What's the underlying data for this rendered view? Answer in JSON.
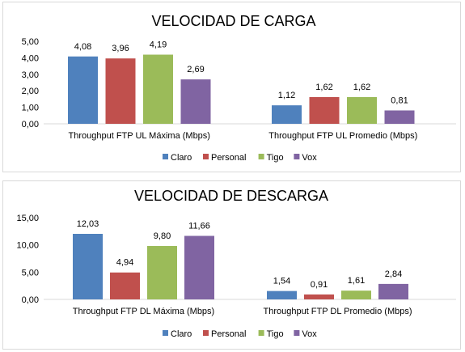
{
  "chart_data": [
    {
      "type": "bar",
      "title": "VELOCIDAD DE CARGA",
      "categories": [
        "Throughput FTP UL Máxima (Mbps)",
        "Throughput FTP UL Promedio (Mbps)"
      ],
      "series": [
        {
          "name": "Claro",
          "values": [
            "4,08",
            "1,12"
          ],
          "color": "#4f81bd"
        },
        {
          "name": "Personal",
          "values": [
            "3,96",
            "1,62"
          ],
          "color": "#c0504d"
        },
        {
          "name": "Tigo",
          "values": [
            "4,19",
            "1,62"
          ],
          "color": "#9bbb59"
        },
        {
          "name": "Vox",
          "values": [
            "2,69",
            "0,81"
          ],
          "color": "#8064a2"
        }
      ],
      "yticks": [
        "0,00",
        "1,00",
        "2,00",
        "3,00",
        "4,00",
        "5,00"
      ],
      "ylim": [
        0,
        5
      ],
      "legend": "bottom",
      "grid": false
    },
    {
      "type": "bar",
      "title": "VELOCIDAD DE DESCARGA",
      "categories": [
        "Throughput FTP DL Máxima (Mbps)",
        "Throughput FTP DL Promedio (Mbps)"
      ],
      "series": [
        {
          "name": "Claro",
          "values": [
            "12,03",
            "1,54"
          ],
          "color": "#4f81bd"
        },
        {
          "name": "Personal",
          "values": [
            "4,94",
            "0,91"
          ],
          "color": "#c0504d"
        },
        {
          "name": "Tigo",
          "values": [
            "9,80",
            "1,61"
          ],
          "color": "#9bbb59"
        },
        {
          "name": "Vox",
          "values": [
            "11,66",
            "2,84"
          ],
          "color": "#8064a2"
        }
      ],
      "yticks": [
        "0,00",
        "5,00",
        "10,00",
        "15,00"
      ],
      "ylim": [
        0,
        15
      ],
      "legend": "bottom",
      "grid": false
    }
  ]
}
